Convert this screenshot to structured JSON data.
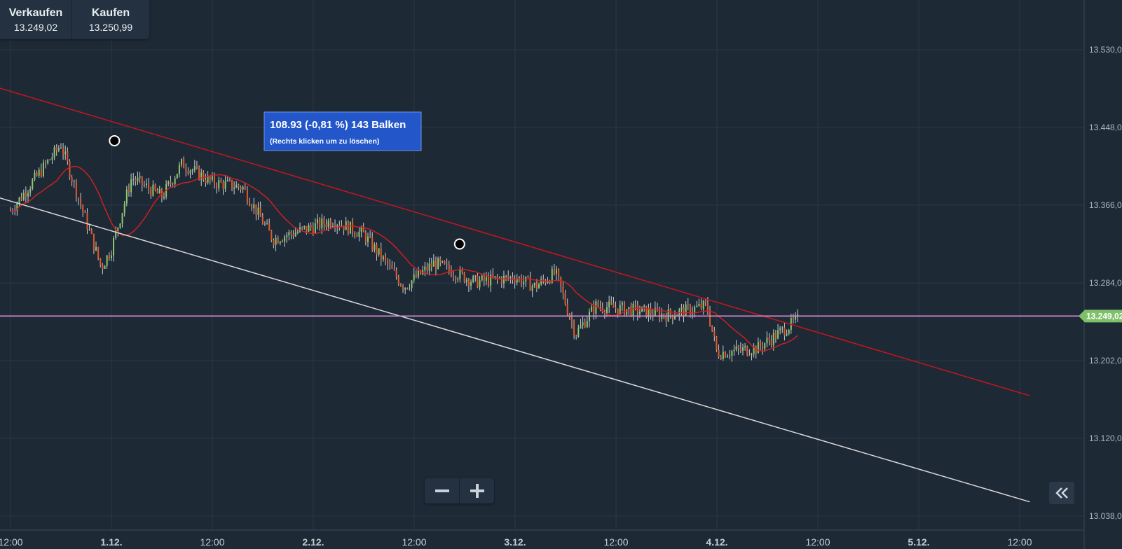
{
  "quote": {
    "sell_label": "Verkaufen",
    "sell_value": "13.249,02",
    "buy_label": "Kaufen",
    "buy_value": "13.250,99"
  },
  "measure": {
    "main": "108.93 (-0,81 %) 143 Balken",
    "hint": "(Rechts klicken um zu löschen)"
  },
  "zoom": {
    "minus_label": "−",
    "plus_label": "+"
  },
  "icons": {
    "zoom_out": "minus-icon",
    "zoom_in": "plus-icon",
    "collapse": "double-chevron-left-icon"
  },
  "colors": {
    "background": "#1e2936",
    "candle_up": "#8cc96b",
    "candle_down": "#e05a2b",
    "moving_average": "#d42020",
    "upper_trendline": "#c4161c",
    "lower_trendline": "#d8d8d8",
    "price_line": "#d58fd6",
    "price_tag": "#7fc06a",
    "measure_box": "#2256c9"
  },
  "chart_data": {
    "type": "candlestick",
    "x_ticks": [
      "12:00",
      "1.12.",
      "12:00",
      "2.12.",
      "12:00",
      "3.12.",
      "12:00",
      "4.12.",
      "12:00",
      "5.12.",
      "12:00"
    ],
    "y_ticks": [
      "13.038,0",
      "13.120,0",
      "13.202,0",
      "13.284,0",
      "13.366,0",
      "13.448,0",
      "13.530,0"
    ],
    "ylim": [
      13020,
      13580
    ],
    "current_price_label": "13.249,02",
    "current_price": 13249.02,
    "key_points": [
      {
        "t": 0.0,
        "p": 13360
      },
      {
        "t": 0.5,
        "p": 13430
      },
      {
        "t": 0.9,
        "p": 13300
      },
      {
        "t": 1.0,
        "p": 13320
      },
      {
        "t": 1.2,
        "p": 13395
      },
      {
        "t": 1.5,
        "p": 13375
      },
      {
        "t": 1.7,
        "p": 13410
      },
      {
        "t": 2.0,
        "p": 13390
      },
      {
        "t": 2.3,
        "p": 13385
      },
      {
        "t": 2.6,
        "p": 13330
      },
      {
        "t": 3.2,
        "p": 13350
      },
      {
        "t": 3.5,
        "p": 13335
      },
      {
        "t": 3.9,
        "p": 13280
      },
      {
        "t": 4.2,
        "p": 13305
      },
      {
        "t": 4.6,
        "p": 13285
      },
      {
        "t": 5.0,
        "p": 13290
      },
      {
        "t": 5.2,
        "p": 13280
      },
      {
        "t": 5.4,
        "p": 13295
      },
      {
        "t": 5.6,
        "p": 13230
      },
      {
        "t": 5.8,
        "p": 13260
      },
      {
        "t": 6.2,
        "p": 13255
      },
      {
        "t": 6.5,
        "p": 13250
      },
      {
        "t": 6.9,
        "p": 13260
      },
      {
        "t": 7.0,
        "p": 13210
      },
      {
        "t": 7.4,
        "p": 13215
      },
      {
        "t": 7.8,
        "p": 13245
      }
    ],
    "upper_trendline": [
      {
        "t": -0.5,
        "p": 13502
      },
      {
        "t": 10.1,
        "p": 13165
      }
    ],
    "lower_trendline": [
      {
        "t": -0.5,
        "p": 13386
      },
      {
        "t": 10.1,
        "p": 13053
      }
    ],
    "measure_anchors": [
      {
        "t": 1.03,
        "p": 13434
      },
      {
        "t": 4.45,
        "p": 13325
      }
    ]
  }
}
